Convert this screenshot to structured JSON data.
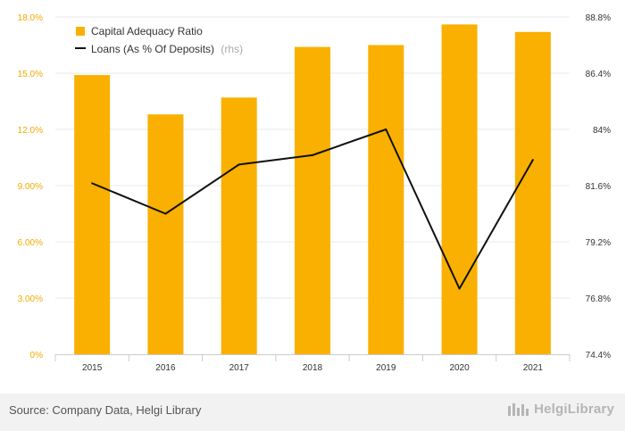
{
  "chart_data": {
    "type": "bar",
    "categories": [
      "2015",
      "2016",
      "2017",
      "2018",
      "2019",
      "2020",
      "2021"
    ],
    "series": [
      {
        "name": "Capital Adequacy Ratio",
        "type": "bar",
        "axis": "left",
        "unit": "%",
        "values": [
          14.9,
          12.8,
          13.7,
          16.4,
          16.5,
          17.6,
          17.2
        ]
      },
      {
        "name": "Loans (As % Of Deposits)",
        "suffix": "(rhs)",
        "type": "line",
        "axis": "right",
        "unit": "%",
        "values": [
          81.7,
          80.4,
          82.5,
          82.9,
          84.0,
          77.2,
          82.7
        ]
      }
    ],
    "left_axis": {
      "ylim": [
        0,
        18
      ],
      "ticks": [
        0,
        3,
        6,
        9,
        12,
        15,
        18
      ],
      "tick_labels": [
        "0%",
        "3.00%",
        "6.00%",
        "9.00%",
        "12.0%",
        "15.0%",
        "18.0%"
      ]
    },
    "right_axis": {
      "ylim": [
        74.4,
        88.8
      ],
      "ticks": [
        74.4,
        76.8,
        79.2,
        81.6,
        84.0,
        86.4,
        88.8
      ],
      "tick_labels": [
        "74.4%",
        "76.8%",
        "79.2%",
        "81.6%",
        "84%",
        "86.4%",
        "88.8%"
      ]
    },
    "grid": true,
    "legend_position": "top-left",
    "colors": {
      "bar": "#f9b000",
      "line": "#111111",
      "grid": "#e8e8e8",
      "left_tick": "#f2a900"
    }
  },
  "footer": {
    "source": "Source: Company Data, Helgi Library",
    "brand_name": "HelgiLibrary",
    "brand_icon": "library-buildings-icon"
  }
}
